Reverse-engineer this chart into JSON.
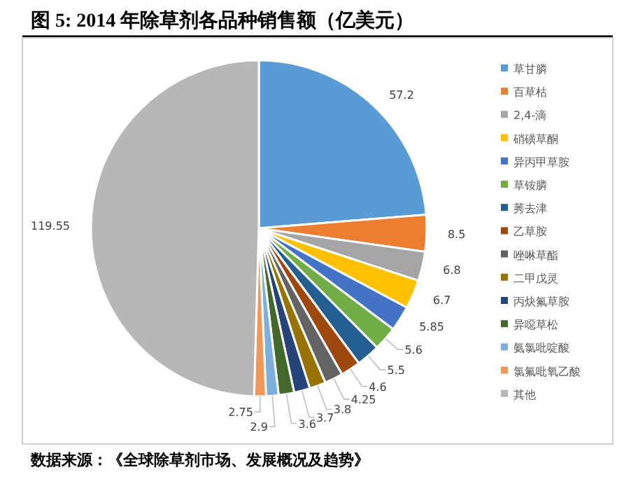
{
  "chart_data": {
    "type": "pie",
    "title": "图 5: 2014 年除草剂各品种销售额（亿美元）",
    "categories": [
      "草甘膦",
      "百草枯",
      "2,4-滴",
      "硝磺草酮",
      "异丙甲草胺",
      "草铵膦",
      "莠去津",
      "乙草胺",
      "唑啉草酯",
      "二甲戊灵",
      "丙炔氟草胺",
      "异噁草松",
      "氨氯吡啶酸",
      "氯氟吡氧乙酸",
      "其他"
    ],
    "values": [
      57.2,
      8.5,
      6.8,
      6.7,
      5.85,
      5.6,
      5.5,
      4.6,
      4.25,
      3.8,
      3.7,
      3.6,
      2.9,
      2.75,
      119.55
    ],
    "colors": [
      "#5b9bd5",
      "#ed7d31",
      "#a5a5a5",
      "#ffc000",
      "#4472c4",
      "#70ad47",
      "#255e91",
      "#9e480e",
      "#636363",
      "#997300",
      "#264478",
      "#43682b",
      "#7cafdd",
      "#f1975a",
      "#b7b7b7"
    ],
    "data_labels": true,
    "legend": "right",
    "annotations": [
      "数据来源：《全球除草剂市场、发展概况及趋势》"
    ]
  }
}
